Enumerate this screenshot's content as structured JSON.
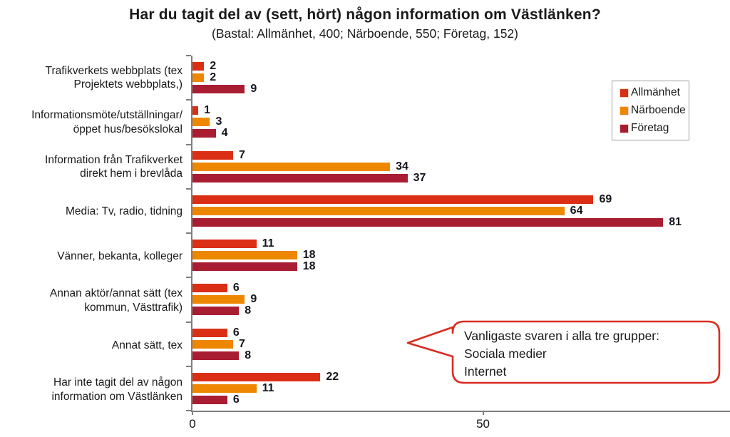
{
  "header": {
    "title": "Har du tagit del av (sett, hört) någon information om Västlänken?",
    "subtitle": "(Bastal: Allmänhet, 400; Närboende, 550; Företag, 152)"
  },
  "legend": {
    "items": [
      {
        "label": "Allmänhet",
        "color": "#DA2F15"
      },
      {
        "label": "Närboende",
        "color": "#EE8700"
      },
      {
        "label": "Företag",
        "color": "#A91D33"
      }
    ]
  },
  "callout": {
    "lines": [
      "Vanligaste svaren i alla tre grupper:",
      "Sociala medier",
      "Internet"
    ],
    "border_color": "#DB2B20"
  },
  "chart_data": {
    "type": "bar",
    "orientation": "horizontal",
    "title": "Har du tagit del av (sett, hört) någon information om Västlänken?",
    "subtitle": "(Bastal: Allmänhet, 400; Närboende, 550; Företag, 152)",
    "categories": [
      "Trafikverkets webbplats (tex\nProjektets webbplats,)",
      "Informationsmöte/utställningar/\nöppet hus/besökslokal",
      "Information från Trafikverket\ndirekt hem i brevlåda",
      "Media: Tv, radio, tidning",
      "Vänner, bekanta, kolleger",
      "Annan aktör/annat sätt (tex\nkommun, Västtrafik)",
      "Annat sätt, tex",
      "Har inte tagit del av någon\ninformation om Västlänken"
    ],
    "series": [
      {
        "name": "Allmänhet",
        "color": "#DA2F15",
        "values": [
          2,
          1,
          7,
          69,
          11,
          6,
          6,
          22
        ]
      },
      {
        "name": "Närboende",
        "color": "#EE8700",
        "values": [
          2,
          3,
          34,
          64,
          18,
          9,
          7,
          11
        ]
      },
      {
        "name": "Företag",
        "color": "#A91D33",
        "values": [
          9,
          4,
          37,
          81,
          18,
          8,
          8,
          6
        ]
      }
    ],
    "value_labels": true,
    "x_ticks": [
      0,
      50
    ],
    "x_max": 92.5,
    "grid": false,
    "axis_color": "#7f7f7f",
    "legend_position": "top-right"
  }
}
